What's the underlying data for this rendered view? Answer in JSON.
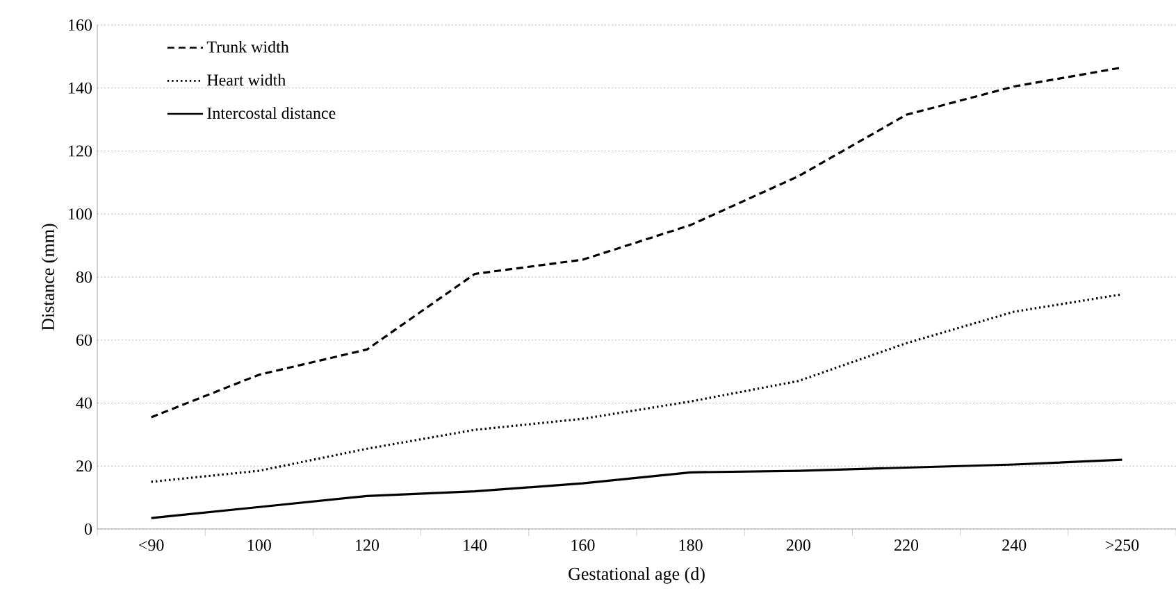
{
  "chart_data": {
    "type": "line",
    "xlabel": "Gestational age (d)",
    "ylabel": "Distance (mm)",
    "categories": [
      "<90",
      "100",
      "120",
      "140",
      "160",
      "180",
      "200",
      "220",
      "240",
      ">250"
    ],
    "series": [
      {
        "name": "Trunk width",
        "color": "#000000",
        "line_style": "dashed",
        "values": [
          35.5,
          49,
          57,
          81,
          85.5,
          96.5,
          112,
          131.5,
          140.5,
          146.5
        ]
      },
      {
        "name": "Heart width",
        "color": "#000000",
        "line_style": "dotted",
        "values": [
          15,
          18.5,
          25.5,
          31.5,
          35,
          40.5,
          47,
          59,
          69,
          74.5
        ]
      },
      {
        "name": "Intercostal distance",
        "color": "#000000",
        "line_style": "solid",
        "values": [
          3.5,
          7,
          10.5,
          12,
          14.5,
          18,
          18.5,
          19.5,
          20.5,
          22
        ]
      }
    ],
    "ylim": [
      0,
      160
    ],
    "yticks": [
      0,
      20,
      40,
      60,
      80,
      100,
      120,
      140,
      160
    ],
    "grid": "y",
    "legend": "top left",
    "marker": "none"
  }
}
